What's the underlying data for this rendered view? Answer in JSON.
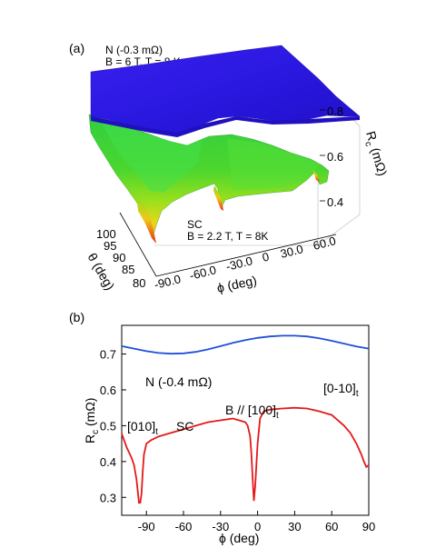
{
  "panel_a": {
    "label": "(a)",
    "annotation_top_1": "N (-0.3 mΩ)",
    "annotation_top_2": "B = 6 T, T = 8 K",
    "annotation_bottom_1": "SC",
    "annotation_bottom_2": "B = 2.2 T, T = 8K",
    "x_axis_label": "ϕ (deg)",
    "x_ticks": [
      "-90.0",
      "-60.0",
      "-30.0",
      "0",
      "30.0",
      "60.0"
    ],
    "y_axis_label": "θ (deg)",
    "y_ticks": [
      "100",
      "95",
      "90",
      "85",
      "80"
    ],
    "z_axis_label_main": "R",
    "z_axis_label_sub": "c",
    "z_axis_label_unit": " (mΩ)",
    "z_ticks": [
      "0.8",
      "0.6",
      "0.4"
    ],
    "colors": {
      "normal_surface": "#2a18e0",
      "sc_surface_high": "#3cd24a",
      "sc_surface_low": "#f0d21c",
      "dip": "#e2321a"
    }
  },
  "panel_b": {
    "label": "(b)",
    "y_axis_label_main": "R",
    "y_axis_label_sub": "c",
    "y_axis_label_unit": " (mΩ)",
    "x_axis_label": "ϕ (deg)",
    "annotation_normal": "N (-0.4 mΩ)",
    "annotation_field": "B // [100]",
    "annotation_field_sub": "t",
    "annotation_sc": "SC",
    "annotation_left_dir": "[010]",
    "annotation_left_dir_sub": "t",
    "annotation_right_dir": "[0-10]",
    "annotation_right_dir_sub": "t",
    "x_tick_labels": [
      "-90",
      "-60",
      "-30",
      "0",
      "30",
      "60",
      "90"
    ],
    "y_tick_labels": [
      "0.3",
      "0.4",
      "0.5",
      "0.6",
      "0.7"
    ]
  },
  "chart_data": [
    {
      "type": "heatmap",
      "title": "",
      "xlabel": "ϕ (deg)",
      "ylabel": "θ (deg)",
      "zlabel": "Rc (mΩ)",
      "xlim": [
        -90,
        90
      ],
      "ylim": [
        80,
        100
      ],
      "zlim": [
        0.35,
        0.85
      ],
      "series": [
        {
          "name": "N (-0.3 mΩ)",
          "approx_value": 0.78
        },
        {
          "name": "SC",
          "approx_value": 0.5,
          "dips_at_phi": [
            -90,
            0,
            90
          ],
          "dip_theta": 90
        }
      ]
    },
    {
      "type": "line",
      "title": "",
      "xlabel": "ϕ (deg)",
      "ylabel": "Rc (mΩ)",
      "xlim": [
        -110,
        90
      ],
      "ylim": [
        0.25,
        0.78
      ],
      "series": [
        {
          "name": "N (-0.4 mΩ)",
          "color": "#1f4fd8",
          "x": [
            -110,
            -100,
            -90,
            -80,
            -70,
            -60,
            -50,
            -40,
            -30,
            -20,
            -10,
            0,
            10,
            20,
            30,
            40,
            50,
            60,
            70,
            80,
            90
          ],
          "y": [
            0.722,
            0.715,
            0.708,
            0.703,
            0.701,
            0.702,
            0.706,
            0.713,
            0.722,
            0.731,
            0.739,
            0.745,
            0.749,
            0.751,
            0.751,
            0.749,
            0.744,
            0.737,
            0.729,
            0.721,
            0.715
          ]
        },
        {
          "name": "SC",
          "color": "#e31a1a",
          "x": [
            -110,
            -106,
            -102,
            -100,
            -98,
            -96,
            -95,
            -94,
            -93,
            -92,
            -90,
            -86,
            -80,
            -70,
            -60,
            -50,
            -40,
            -30,
            -20,
            -15,
            -10,
            -8,
            -6,
            -5,
            -4,
            -3,
            -2,
            0,
            2,
            5,
            10,
            20,
            30,
            40,
            50,
            60,
            70,
            75,
            80,
            84,
            86,
            88,
            90
          ],
          "y": [
            0.478,
            0.44,
            0.41,
            0.39,
            0.35,
            0.285,
            0.285,
            0.31,
            0.37,
            0.42,
            0.45,
            0.46,
            0.47,
            0.48,
            0.49,
            0.5,
            0.51,
            0.515,
            0.52,
            0.515,
            0.51,
            0.5,
            0.47,
            0.42,
            0.35,
            0.29,
            0.33,
            0.45,
            0.52,
            0.54,
            0.545,
            0.548,
            0.55,
            0.548,
            0.54,
            0.53,
            0.5,
            0.48,
            0.45,
            0.42,
            0.4,
            0.385,
            0.39
          ]
        }
      ]
    }
  ]
}
